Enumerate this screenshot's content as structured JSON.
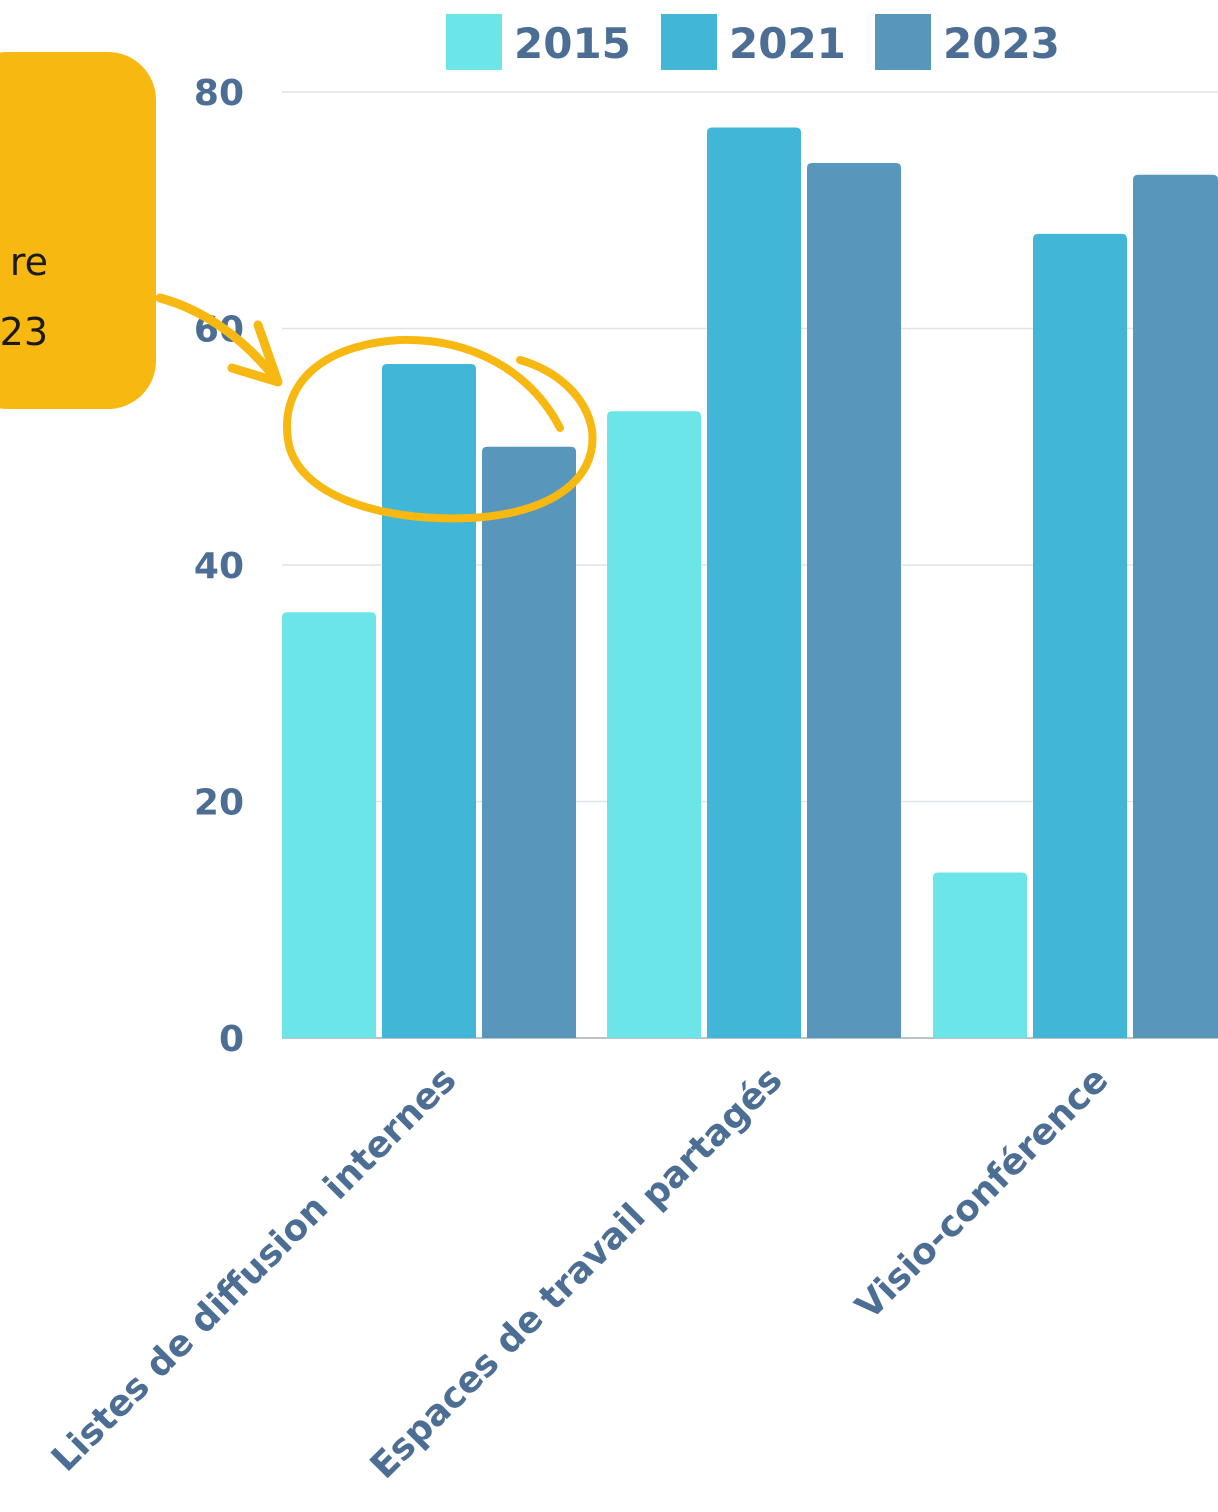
{
  "chart_data": {
    "type": "bar",
    "title": "",
    "xlabel": "",
    "ylabel": "",
    "categories": [
      "Listes de diffusion internes",
      "Espaces de travail partagés",
      "Visio-conférence"
    ],
    "series": [
      {
        "name": "2015",
        "color": "#6ce5e8",
        "values": [
          36,
          53,
          14
        ]
      },
      {
        "name": "2021",
        "color": "#41b6d6",
        "values": [
          57,
          77,
          68
        ]
      },
      {
        "name": "2023",
        "color": "#5896bb",
        "values": [
          50,
          74,
          73
        ]
      }
    ],
    "yticks": [
      0,
      20,
      40,
      60,
      80
    ],
    "ylim": [
      0,
      80
    ],
    "grid": true,
    "legend_position": "top"
  },
  "annotation": {
    "lines": [
      "re",
      "23"
    ],
    "color": "#f7b812",
    "highlight": "Listes de diffusion internes: 2021–2023"
  }
}
